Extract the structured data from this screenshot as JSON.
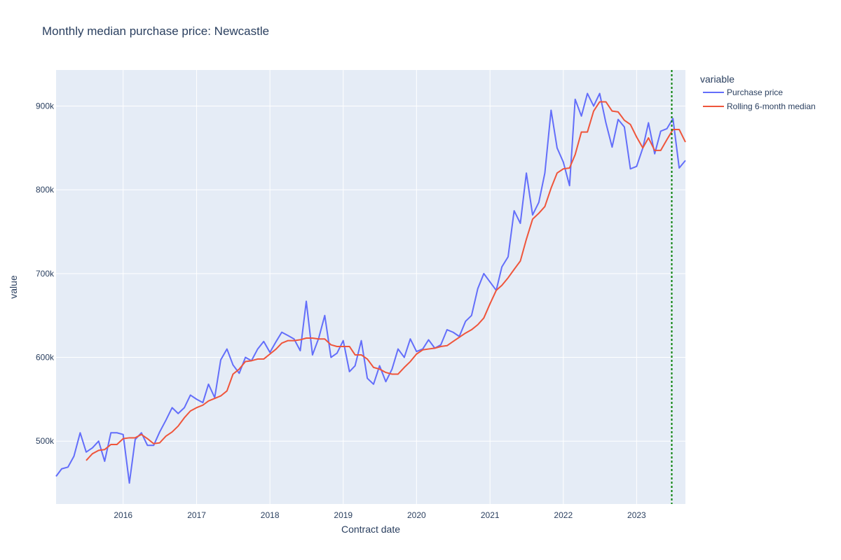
{
  "chart_data": {
    "type": "line",
    "title": "Monthly median purchase price: Newcastle",
    "xlabel": "Contract date",
    "ylabel": "value",
    "legend_title": "variable",
    "legend_position": "right",
    "grid": true,
    "x_range": [
      "2015-02-01",
      "2023-09-01"
    ],
    "ylim": [
      425000,
      943000
    ],
    "x_ticks": [
      "2016",
      "2017",
      "2018",
      "2019",
      "2020",
      "2021",
      "2022",
      "2023"
    ],
    "y_ticks": [
      {
        "value": 500000,
        "label": "500k"
      },
      {
        "value": 600000,
        "label": "600k"
      },
      {
        "value": 700000,
        "label": "700k"
      },
      {
        "value": 800000,
        "label": "800k"
      },
      {
        "value": 900000,
        "label": "900k"
      }
    ],
    "vline": {
      "x": "2023-06-25",
      "color": "#008000",
      "style": "dotted"
    },
    "series": [
      {
        "name": "Purchase price",
        "color": "#636efa",
        "start": "2015-02-01",
        "values": [
          458000,
          467000,
          469000,
          482000,
          510000,
          487000,
          492000,
          500000,
          476000,
          510000,
          510000,
          508000,
          450000,
          502000,
          510000,
          495000,
          495000,
          511000,
          525000,
          540000,
          533000,
          540000,
          555000,
          550000,
          546000,
          568000,
          552000,
          597000,
          610000,
          591000,
          581000,
          600000,
          596000,
          610000,
          619000,
          606000,
          619000,
          630000,
          626000,
          622000,
          608000,
          667000,
          603000,
          623000,
          650000,
          600000,
          605000,
          620000,
          583000,
          590000,
          620000,
          575000,
          568000,
          590000,
          571000,
          586000,
          610000,
          600000,
          622000,
          607000,
          610000,
          621000,
          611000,
          615000,
          633000,
          630000,
          625000,
          643000,
          650000,
          682000,
          700000,
          690000,
          680000,
          708000,
          720000,
          775000,
          760000,
          820000,
          770000,
          785000,
          820000,
          895000,
          850000,
          833000,
          805000,
          908000,
          888000,
          915000,
          900000,
          915000,
          880000,
          851000,
          884000,
          875000,
          825000,
          828000,
          850000,
          880000,
          843000,
          870000,
          873000,
          885000,
          826000,
          835000
        ]
      },
      {
        "name": "Rolling 6-month median",
        "color": "#ef553b",
        "start": "2015-07-01",
        "values": [
          477000,
          485000,
          489000,
          490000,
          496000,
          496000,
          503000,
          504000,
          504000,
          508000,
          503000,
          497000,
          498000,
          506000,
          511000,
          518000,
          528000,
          536000,
          540000,
          543000,
          548000,
          551000,
          554000,
          560000,
          580000,
          586000,
          595000,
          596000,
          598000,
          598000,
          604000,
          610000,
          617000,
          620000,
          620000,
          621000,
          623000,
          623000,
          622000,
          622000,
          615000,
          613000,
          613000,
          613000,
          603000,
          603000,
          598000,
          588000,
          586000,
          582000,
          580000,
          580000,
          588000,
          595000,
          604000,
          609000,
          610000,
          611000,
          613000,
          614000,
          619000,
          624000,
          629000,
          633000,
          639000,
          647000,
          664000,
          680000,
          686000,
          695000,
          705000,
          715000,
          741000,
          765000,
          772000,
          780000,
          802000,
          820000,
          825000,
          826000,
          842000,
          869000,
          869000,
          894000,
          905000,
          905000,
          894000,
          893000,
          883000,
          878000,
          863000,
          850000,
          862000,
          847000,
          847000,
          860000,
          872000,
          872000,
          857000
        ]
      }
    ]
  }
}
